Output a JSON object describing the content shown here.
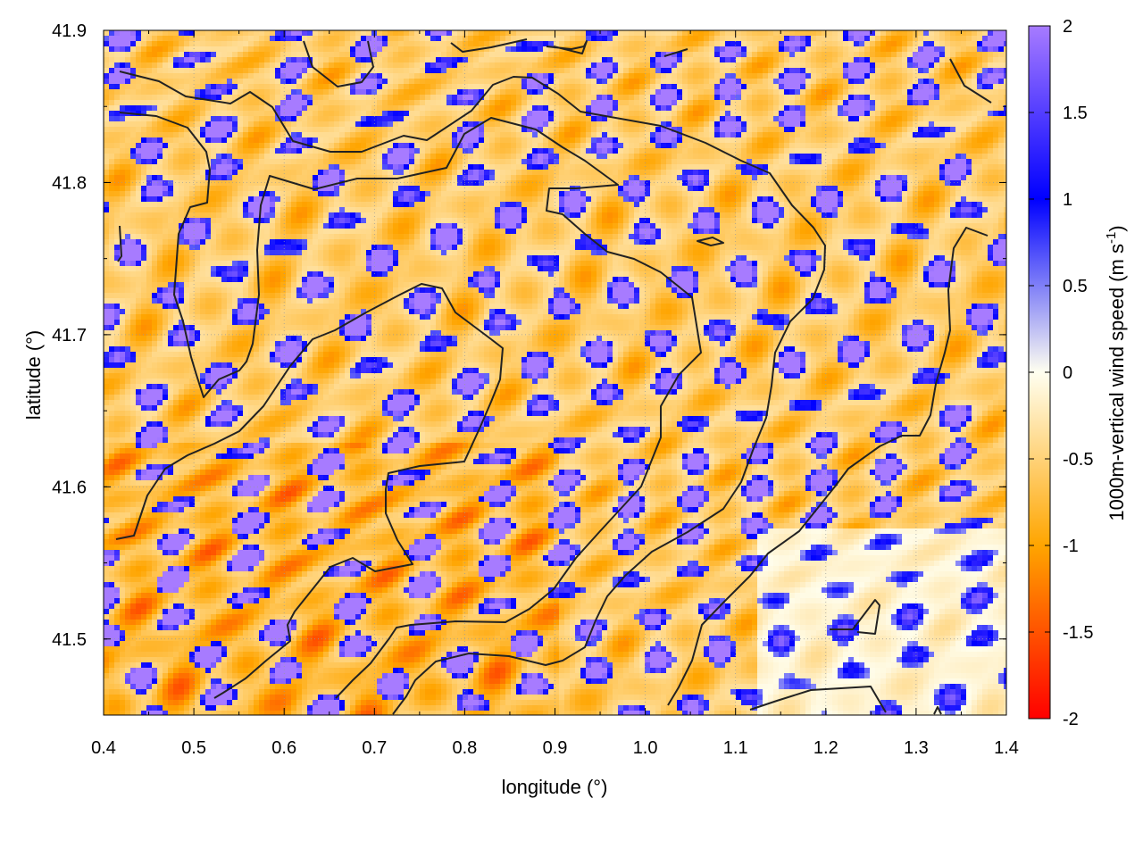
{
  "chart_data": {
    "type": "heatmap",
    "title": "",
    "xlabel": "longitude (°)",
    "ylabel": "latitude (°)",
    "xlim": [
      0.4,
      1.4
    ],
    "ylim": [
      41.45,
      41.9
    ],
    "x_ticks": [
      "0.4",
      "0.5",
      "0.6",
      "0.7",
      "0.8",
      "0.9",
      "1.0",
      "1.1",
      "1.2",
      "1.3",
      "1.4"
    ],
    "y_ticks": [
      "41.5",
      "41.6",
      "41.7",
      "41.8",
      "41.9"
    ],
    "grid": true,
    "colorbar": {
      "label_main": "1000m-vertical wind speed (m s",
      "label_sup": "-1",
      "label_end": ")",
      "range": [
        -2,
        2
      ],
      "ticks": [
        "2",
        "1.5",
        "1",
        "0.5",
        "0",
        "-0.5",
        "-1",
        "-1.5",
        "-2"
      ],
      "colors": [
        "#ff0000",
        "#ffa500",
        "#fffff0",
        "#0000ff",
        "#a77bff"
      ]
    },
    "field_description": "Gridded vertical wind speed at 1000 m; elongated updraft streaks (blue/purple) alternating with downdraft bands (orange/red), stronger magnitudes in the southwest.",
    "contour_color": "#222222"
  }
}
